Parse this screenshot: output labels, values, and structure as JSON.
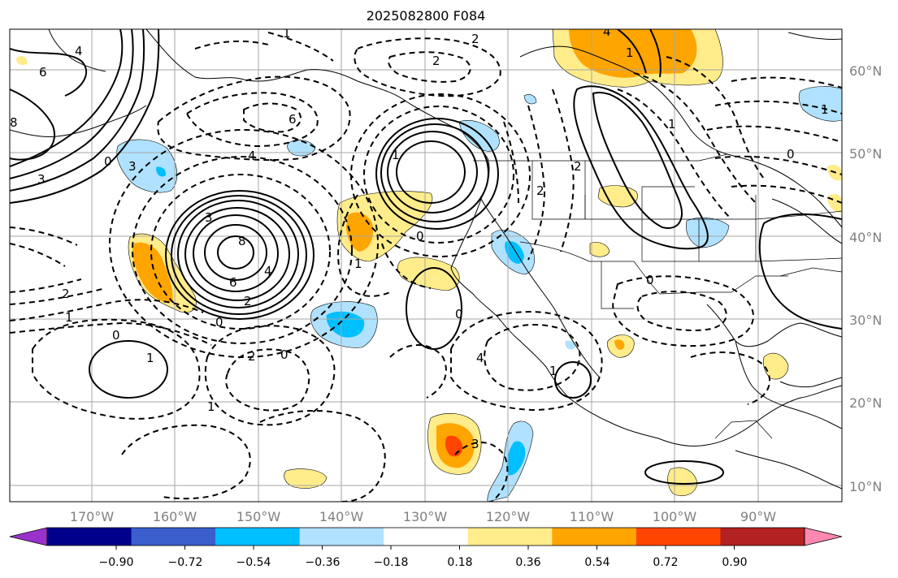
{
  "title": "2025082800 F084",
  "lon_labels": [
    "170°W",
    "160°W",
    "150°W",
    "140°W",
    "130°W",
    "120°W",
    "110°W",
    "100°W",
    "90°W"
  ],
  "lat_labels": [
    "60°N",
    "50°N",
    "40°N",
    "30°N",
    "20°N",
    "10°N"
  ],
  "colorbar": {
    "ticks": [
      "−0.90",
      "−0.72",
      "−0.54",
      "−0.36",
      "−0.18",
      "0.18",
      "0.36",
      "0.54",
      "0.72",
      "0.90"
    ],
    "colors": [
      "#9932cc",
      "#00008b",
      "#3a5fcd",
      "#00bfff",
      "#b0e2ff",
      "#ffffff",
      "#ffec8b",
      "#ffa500",
      "#ff4500",
      "#b22222",
      "#ff88b0"
    ]
  },
  "contour_labels": [
    "6",
    "4",
    "8",
    "3",
    "0",
    "6",
    "4",
    "3",
    "2",
    "1",
    "0",
    "1",
    "3",
    "8",
    "6",
    "4",
    "2",
    "0",
    "2",
    "1",
    "0",
    "1",
    "2",
    "2",
    "1",
    "0",
    "1",
    "0",
    "4",
    "1",
    "3",
    "1",
    "4",
    "2",
    "2",
    "1",
    "1",
    "0",
    "0"
  ]
}
